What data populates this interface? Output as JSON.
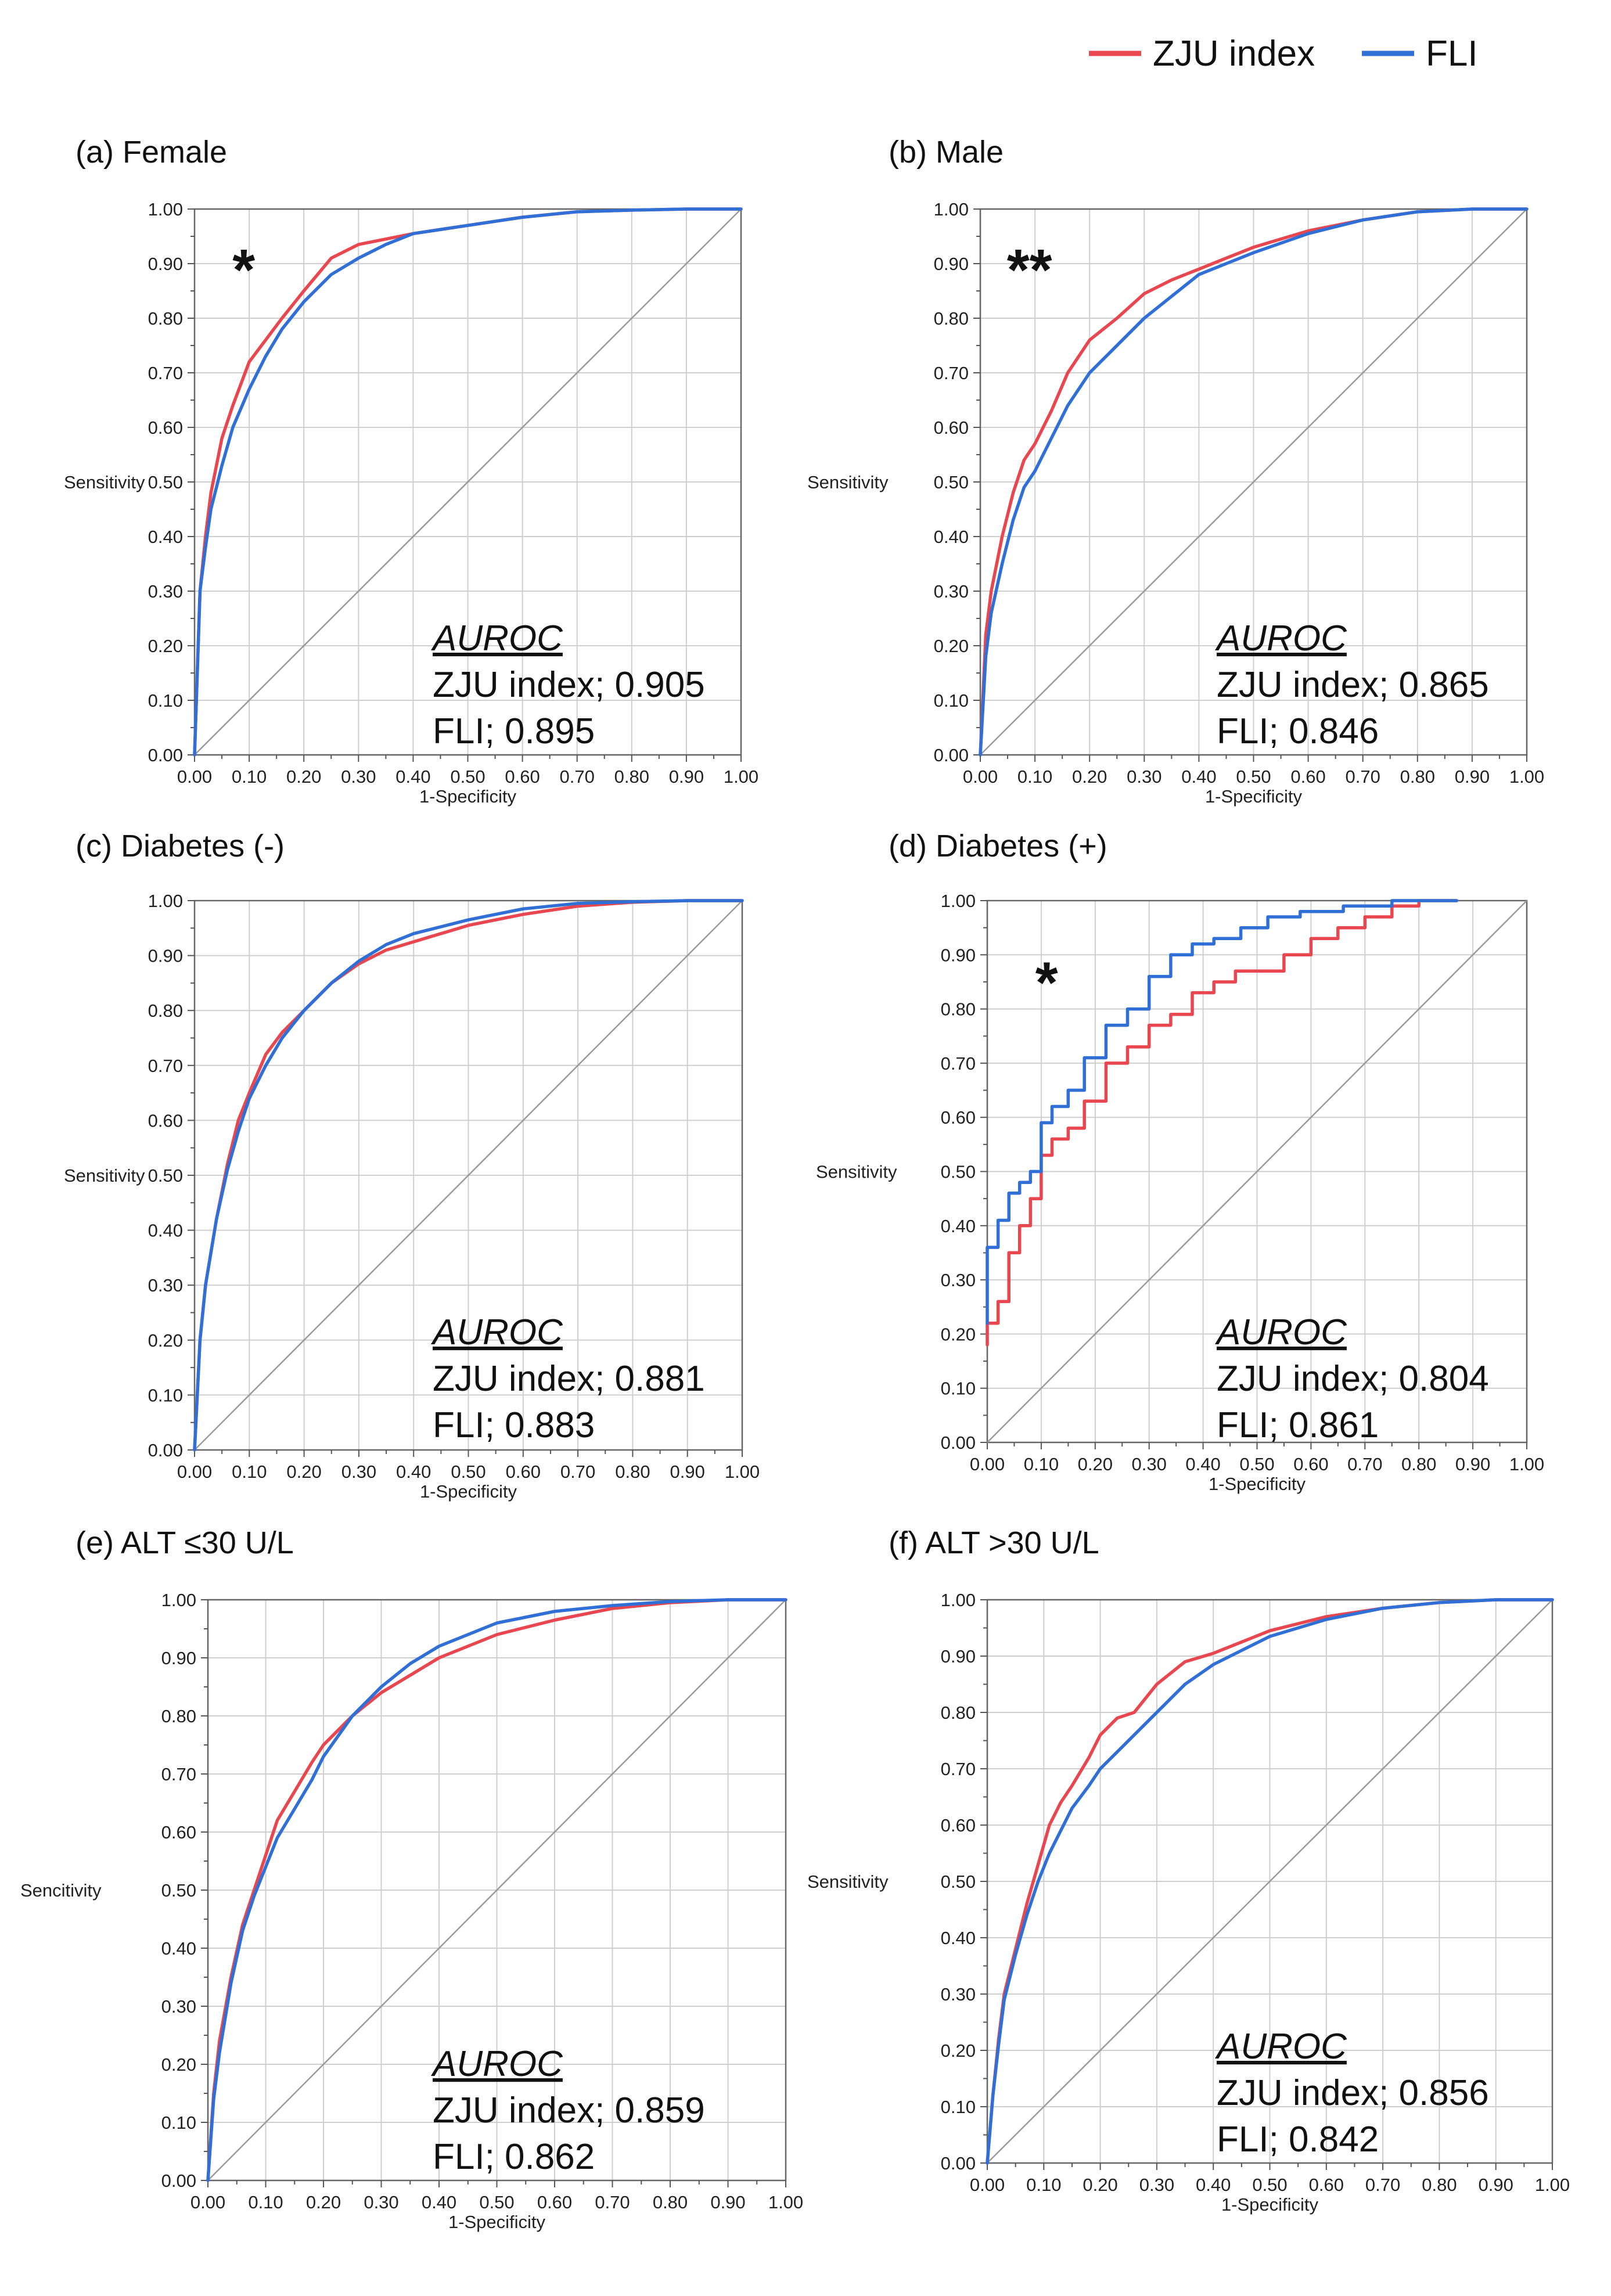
{
  "legend": [
    {
      "name": "ZJU index",
      "color": "#e8474f"
    },
    {
      "name": "FLI",
      "color": "#2f6fd6"
    }
  ],
  "chart_data": [
    {
      "type": "line",
      "panel": "a",
      "title": "(a) Female",
      "xlabel": "1-Specificity",
      "ylabel": "Sensitivity",
      "xlim": [
        0,
        1
      ],
      "ylim": [
        0,
        1
      ],
      "grid": true,
      "ticks": [
        "0.00",
        "0.10",
        "0.20",
        "0.30",
        "0.40",
        "0.50",
        "0.60",
        "0.70",
        "0.80",
        "0.90",
        "1.00"
      ],
      "significance": "*",
      "auroc": {
        "heading": "AUROC",
        "lines": [
          "ZJU index; 0.905",
          "FLI; 0.895"
        ]
      },
      "series": [
        {
          "name": "ZJU index",
          "x": [
            0,
            0.01,
            0.02,
            0.03,
            0.05,
            0.07,
            0.1,
            0.13,
            0.16,
            0.2,
            0.25,
            0.3,
            0.35,
            0.4,
            0.5,
            0.6,
            0.7,
            0.8,
            0.9,
            1
          ],
          "y": [
            0,
            0.3,
            0.4,
            0.48,
            0.58,
            0.64,
            0.72,
            0.76,
            0.8,
            0.85,
            0.91,
            0.935,
            0.945,
            0.955,
            0.97,
            0.985,
            0.995,
            0.998,
            1,
            1
          ]
        },
        {
          "name": "FLI",
          "x": [
            0,
            0.01,
            0.02,
            0.03,
            0.05,
            0.07,
            0.1,
            0.13,
            0.16,
            0.2,
            0.25,
            0.3,
            0.35,
            0.4,
            0.5,
            0.6,
            0.7,
            0.8,
            0.9,
            1
          ],
          "y": [
            0,
            0.3,
            0.38,
            0.45,
            0.53,
            0.6,
            0.67,
            0.73,
            0.78,
            0.83,
            0.88,
            0.91,
            0.935,
            0.955,
            0.97,
            0.985,
            0.995,
            0.998,
            1,
            1
          ]
        }
      ]
    },
    {
      "type": "line",
      "panel": "b",
      "title": "(b) Male",
      "xlabel": "1-Specificity",
      "ylabel": "Sensitivity",
      "xlim": [
        0,
        1
      ],
      "ylim": [
        0,
        1
      ],
      "grid": true,
      "ticks": [
        "0.00",
        "0.10",
        "0.20",
        "0.30",
        "0.40",
        "0.50",
        "0.60",
        "0.70",
        "0.80",
        "0.90",
        "1.00"
      ],
      "significance": "**",
      "auroc": {
        "heading": "AUROC",
        "lines": [
          "ZJU index; 0.865",
          "FLI; 0.846"
        ]
      },
      "series": [
        {
          "name": "ZJU index",
          "x": [
            0,
            0.01,
            0.02,
            0.04,
            0.06,
            0.08,
            0.1,
            0.13,
            0.16,
            0.2,
            0.25,
            0.3,
            0.35,
            0.4,
            0.45,
            0.5,
            0.6,
            0.7,
            0.8,
            0.9,
            1
          ],
          "y": [
            0,
            0.22,
            0.3,
            0.4,
            0.48,
            0.54,
            0.57,
            0.63,
            0.7,
            0.76,
            0.8,
            0.845,
            0.87,
            0.89,
            0.91,
            0.93,
            0.96,
            0.98,
            0.995,
            1,
            1
          ]
        },
        {
          "name": "FLI",
          "x": [
            0,
            0.01,
            0.02,
            0.04,
            0.06,
            0.08,
            0.1,
            0.13,
            0.16,
            0.2,
            0.25,
            0.3,
            0.35,
            0.4,
            0.45,
            0.5,
            0.6,
            0.7,
            0.8,
            0.9,
            1
          ],
          "y": [
            0,
            0.18,
            0.26,
            0.35,
            0.43,
            0.49,
            0.52,
            0.58,
            0.64,
            0.7,
            0.75,
            0.8,
            0.84,
            0.88,
            0.9,
            0.92,
            0.955,
            0.98,
            0.995,
            1,
            1
          ]
        }
      ]
    },
    {
      "type": "line",
      "panel": "c",
      "title": "(c) Diabetes (-)",
      "xlabel": "1-Specificity",
      "ylabel": "Sensitivity",
      "xlim": [
        0,
        1
      ],
      "ylim": [
        0,
        1
      ],
      "grid": true,
      "ticks": [
        "0.00",
        "0.10",
        "0.20",
        "0.30",
        "0.40",
        "0.50",
        "0.60",
        "0.70",
        "0.80",
        "0.90",
        "1.00"
      ],
      "significance": "",
      "auroc": {
        "heading": "AUROC",
        "lines": [
          "ZJU index; 0.881",
          "FLI; 0.883"
        ]
      },
      "series": [
        {
          "name": "ZJU index",
          "x": [
            0,
            0.01,
            0.02,
            0.04,
            0.06,
            0.08,
            0.1,
            0.13,
            0.16,
            0.2,
            0.25,
            0.3,
            0.35,
            0.4,
            0.5,
            0.6,
            0.7,
            0.8,
            0.9,
            1
          ],
          "y": [
            0,
            0.2,
            0.3,
            0.42,
            0.52,
            0.6,
            0.65,
            0.72,
            0.76,
            0.8,
            0.85,
            0.885,
            0.91,
            0.925,
            0.955,
            0.975,
            0.99,
            0.997,
            1,
            1
          ]
        },
        {
          "name": "FLI",
          "x": [
            0,
            0.01,
            0.02,
            0.04,
            0.06,
            0.08,
            0.1,
            0.13,
            0.16,
            0.2,
            0.25,
            0.3,
            0.35,
            0.4,
            0.5,
            0.6,
            0.7,
            0.8,
            0.9,
            1
          ],
          "y": [
            0,
            0.2,
            0.3,
            0.42,
            0.51,
            0.58,
            0.64,
            0.7,
            0.75,
            0.8,
            0.85,
            0.89,
            0.92,
            0.94,
            0.965,
            0.985,
            0.995,
            0.998,
            1,
            1
          ]
        }
      ]
    },
    {
      "type": "line",
      "panel": "d",
      "title": "(d) Diabetes (+)",
      "xlabel": "1-Specificity",
      "ylabel": "Sensitivity",
      "xlim": [
        0,
        1
      ],
      "ylim": [
        0,
        1
      ],
      "grid": true,
      "ticks": [
        "0.00",
        "0.10",
        "0.20",
        "0.30",
        "0.40",
        "0.50",
        "0.60",
        "0.70",
        "0.80",
        "0.90",
        "1.00"
      ],
      "significance": "*",
      "auroc": {
        "heading": "AUROC",
        "lines": [
          "ZJU index; 0.804",
          "FLI; 0.861"
        ]
      },
      "series": [
        {
          "name": "ZJU index",
          "x": [
            0,
            0,
            0.02,
            0.02,
            0.04,
            0.04,
            0.06,
            0.06,
            0.08,
            0.08,
            0.1,
            0.1,
            0.12,
            0.12,
            0.15,
            0.15,
            0.18,
            0.18,
            0.22,
            0.22,
            0.26,
            0.26,
            0.3,
            0.3,
            0.34,
            0.34,
            0.38,
            0.38,
            0.42,
            0.42,
            0.46,
            0.46,
            0.5,
            0.5,
            0.55,
            0.55,
            0.6,
            0.6,
            0.65,
            0.65,
            0.7,
            0.7,
            0.75,
            0.75,
            0.8,
            0.8,
            0.87
          ],
          "y": [
            0.18,
            0.22,
            0.22,
            0.26,
            0.26,
            0.35,
            0.35,
            0.4,
            0.4,
            0.45,
            0.45,
            0.53,
            0.53,
            0.56,
            0.56,
            0.58,
            0.58,
            0.63,
            0.63,
            0.7,
            0.7,
            0.73,
            0.73,
            0.77,
            0.77,
            0.79,
            0.79,
            0.83,
            0.83,
            0.85,
            0.85,
            0.87,
            0.87,
            0.87,
            0.87,
            0.9,
            0.9,
            0.93,
            0.93,
            0.95,
            0.95,
            0.97,
            0.97,
            0.99,
            0.99,
            1,
            1
          ]
        },
        {
          "name": "FLI",
          "x": [
            0,
            0,
            0.02,
            0.02,
            0.04,
            0.04,
            0.06,
            0.06,
            0.08,
            0.08,
            0.1,
            0.1,
            0.12,
            0.12,
            0.15,
            0.15,
            0.18,
            0.18,
            0.22,
            0.22,
            0.26,
            0.26,
            0.3,
            0.3,
            0.34,
            0.34,
            0.38,
            0.38,
            0.42,
            0.42,
            0.47,
            0.47,
            0.52,
            0.52,
            0.58,
            0.58,
            0.66,
            0.66,
            0.75,
            0.75,
            0.87
          ],
          "y": [
            0.22,
            0.36,
            0.36,
            0.41,
            0.41,
            0.46,
            0.46,
            0.48,
            0.48,
            0.5,
            0.5,
            0.59,
            0.59,
            0.62,
            0.62,
            0.65,
            0.65,
            0.71,
            0.71,
            0.77,
            0.77,
            0.8,
            0.8,
            0.86,
            0.86,
            0.9,
            0.9,
            0.92,
            0.92,
            0.93,
            0.93,
            0.95,
            0.95,
            0.97,
            0.97,
            0.98,
            0.98,
            0.99,
            0.99,
            1,
            1
          ]
        }
      ]
    },
    {
      "type": "line",
      "panel": "e",
      "title": "(e) ALT ≤30 U/L",
      "xlabel": "1-Specificity",
      "ylabel": "Sencitivity",
      "xlim": [
        0,
        1
      ],
      "ylim": [
        0,
        1
      ],
      "grid": true,
      "ticks": [
        "0.00",
        "0.10",
        "0.20",
        "0.30",
        "0.40",
        "0.50",
        "0.60",
        "0.70",
        "0.80",
        "0.90",
        "1.00"
      ],
      "significance": "",
      "auroc": {
        "heading": "AUROC",
        "lines": [
          "ZJU index; 0.859",
          "FLI; 0.862"
        ]
      },
      "series": [
        {
          "name": "ZJU index",
          "x": [
            0,
            0.01,
            0.02,
            0.04,
            0.06,
            0.08,
            0.1,
            0.12,
            0.15,
            0.18,
            0.2,
            0.25,
            0.3,
            0.35,
            0.4,
            0.5,
            0.6,
            0.7,
            0.8,
            0.9,
            1
          ],
          "y": [
            0,
            0.15,
            0.24,
            0.35,
            0.44,
            0.5,
            0.56,
            0.62,
            0.67,
            0.72,
            0.75,
            0.8,
            0.84,
            0.87,
            0.9,
            0.94,
            0.965,
            0.985,
            0.995,
            1,
            1
          ]
        },
        {
          "name": "FLI",
          "x": [
            0,
            0.01,
            0.02,
            0.04,
            0.06,
            0.08,
            0.1,
            0.12,
            0.15,
            0.18,
            0.2,
            0.25,
            0.3,
            0.35,
            0.4,
            0.5,
            0.6,
            0.7,
            0.8,
            0.9,
            1
          ],
          "y": [
            0,
            0.14,
            0.22,
            0.34,
            0.43,
            0.49,
            0.54,
            0.59,
            0.64,
            0.69,
            0.73,
            0.8,
            0.85,
            0.89,
            0.92,
            0.96,
            0.98,
            0.99,
            0.997,
            1,
            1
          ]
        }
      ]
    },
    {
      "type": "line",
      "panel": "f",
      "title": "(f) ALT >30 U/L",
      "xlabel": "1-Specificity",
      "ylabel": "Sensitivity",
      "xlim": [
        0,
        1
      ],
      "ylim": [
        0,
        1
      ],
      "grid": true,
      "ticks": [
        "0.00",
        "0.10",
        "0.20",
        "0.30",
        "0.40",
        "0.50",
        "0.60",
        "0.70",
        "0.80",
        "0.90",
        "1.00"
      ],
      "significance": "",
      "auroc": {
        "heading": "AUROC",
        "lines": [
          "ZJU index; 0.856",
          "FLI; 0.842"
        ]
      },
      "series": [
        {
          "name": "ZJU index",
          "x": [
            0,
            0.01,
            0.02,
            0.03,
            0.05,
            0.07,
            0.09,
            0.11,
            0.13,
            0.15,
            0.18,
            0.2,
            0.23,
            0.26,
            0.3,
            0.35,
            0.4,
            0.45,
            0.5,
            0.6,
            0.7,
            0.8,
            0.9,
            1
          ],
          "y": [
            0,
            0.12,
            0.22,
            0.3,
            0.38,
            0.46,
            0.53,
            0.6,
            0.64,
            0.67,
            0.72,
            0.76,
            0.79,
            0.8,
            0.85,
            0.89,
            0.905,
            0.925,
            0.945,
            0.97,
            0.985,
            0.995,
            1,
            1
          ]
        },
        {
          "name": "FLI",
          "x": [
            0,
            0.01,
            0.02,
            0.03,
            0.05,
            0.07,
            0.09,
            0.11,
            0.13,
            0.15,
            0.18,
            0.2,
            0.23,
            0.26,
            0.3,
            0.35,
            0.4,
            0.45,
            0.5,
            0.6,
            0.7,
            0.8,
            0.9,
            1
          ],
          "y": [
            0,
            0.12,
            0.21,
            0.29,
            0.37,
            0.44,
            0.5,
            0.55,
            0.59,
            0.63,
            0.67,
            0.7,
            0.73,
            0.76,
            0.8,
            0.85,
            0.885,
            0.91,
            0.935,
            0.965,
            0.985,
            0.995,
            1,
            1
          ]
        }
      ]
    }
  ]
}
